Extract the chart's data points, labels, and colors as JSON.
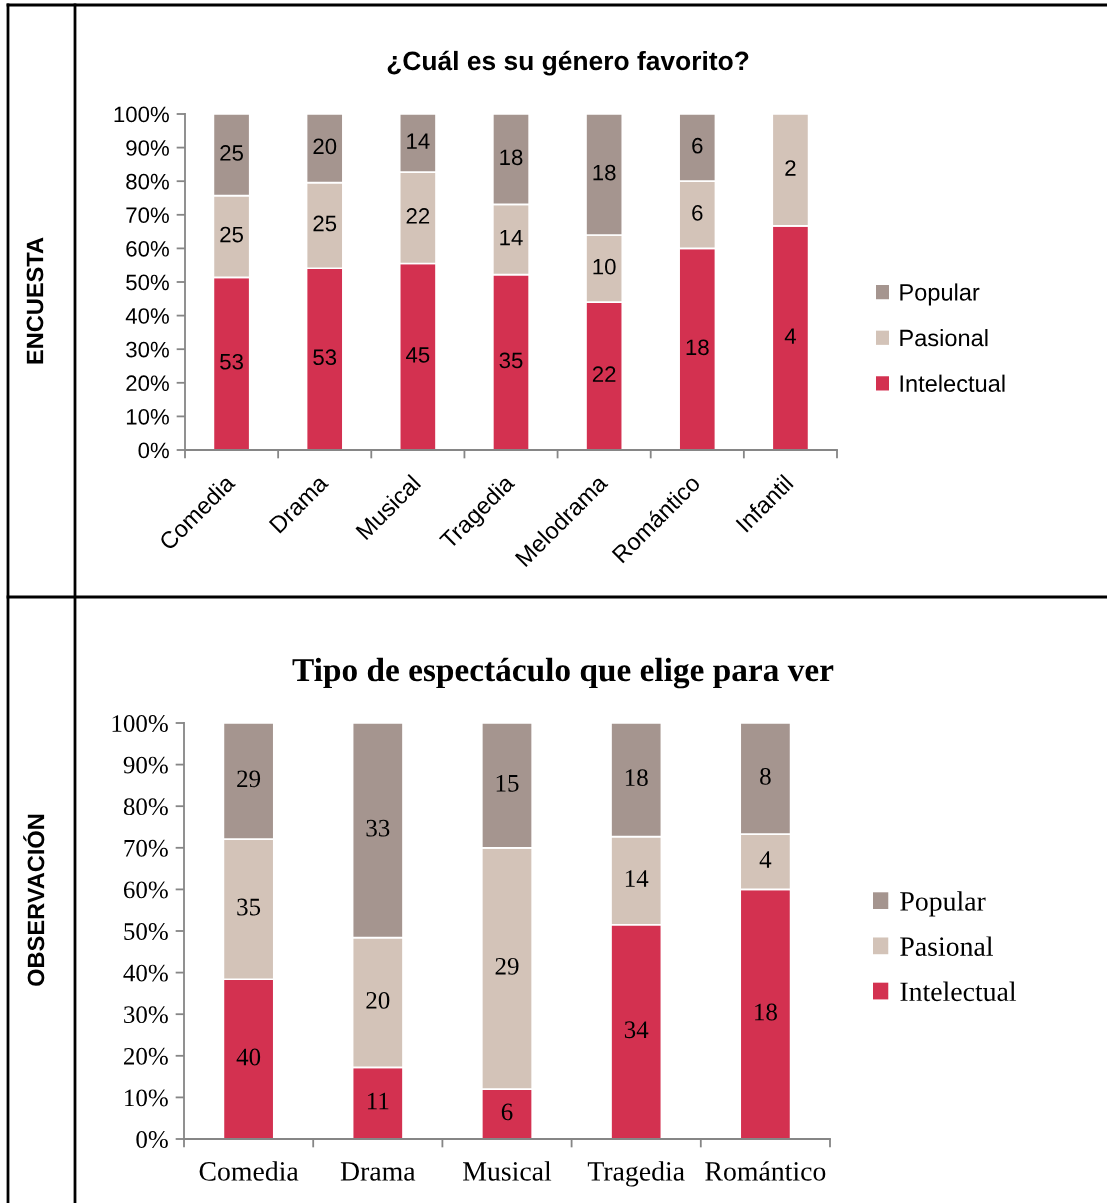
{
  "chart_data": [
    {
      "type": "bar",
      "stacked": true,
      "title": "¿Cuál es su género favorito?",
      "ylabel": "ENCUESTA",
      "categories": [
        "Comedia",
        "Drama",
        "Musical",
        "Tragedia",
        "Melodrama",
        "Romántico",
        "Infantil"
      ],
      "series": [
        {
          "name": "Intelectual",
          "color": "#d33150",
          "values": [
            51.4,
            54.1,
            55.5,
            52.2,
            44,
            60,
            66.7
          ]
        },
        {
          "name": "Pasional",
          "color": "#d3c3b8",
          "values": [
            24.3,
            25.5,
            27.2,
            20.9,
            20,
            20,
            33.3
          ]
        },
        {
          "name": "Popular",
          "color": "#a5958f",
          "values": [
            24.3,
            20.4,
            17.3,
            26.9,
            36,
            20,
            null
          ]
        }
      ],
      "ylim": [
        0,
        100
      ],
      "yticks": [
        {
          "value": 0,
          "label": "0%"
        },
        {
          "value": 10,
          "label": "10%"
        },
        {
          "value": 20,
          "label": "20%"
        },
        {
          "value": 30,
          "label": "30%"
        },
        {
          "value": 40,
          "label": "40%"
        },
        {
          "value": 50,
          "label": "50%"
        },
        {
          "value": 60,
          "label": "60%"
        },
        {
          "value": 70,
          "label": "70%"
        },
        {
          "value": 80,
          "label": "80%"
        },
        {
          "value": 90,
          "label": "90%"
        },
        {
          "value": 100,
          "label": "100%"
        }
      ],
      "annotations": [
        "53",
        "25",
        "25",
        "53",
        "25",
        "20",
        "45",
        "22",
        "14",
        "35",
        "14",
        "18",
        "22",
        "10",
        "18",
        "18",
        "6",
        "6",
        "4",
        "2"
      ],
      "legend": "right"
    },
    {
      "type": "bar",
      "stacked": true,
      "title": "Tipo de espectáculo que elige para ver",
      "ylabel": "OBSERVACIÓN",
      "categories": [
        "Comedia",
        "Drama",
        "Musical",
        "Tragedia",
        "Romántico"
      ],
      "series": [
        {
          "name": "Intelectual",
          "color": "#d33150",
          "values": [
            38.4,
            17.2,
            12,
            51.5,
            60
          ]
        },
        {
          "name": "Pasional",
          "color": "#d3c3b8",
          "values": [
            33.7,
            31.2,
            58,
            21.2,
            13.3
          ]
        },
        {
          "name": "Popular",
          "color": "#a5958f",
          "values": [
            27.9,
            51.6,
            30,
            27.3,
            26.7
          ]
        }
      ],
      "ylim": [
        0,
        100
      ],
      "yticks": [
        {
          "value": 0,
          "label": "0%"
        },
        {
          "value": 10,
          "label": "10%"
        },
        {
          "value": 20,
          "label": "20%"
        },
        {
          "value": 30,
          "label": "30%"
        },
        {
          "value": 40,
          "label": "40%"
        },
        {
          "value": 50,
          "label": "50%"
        },
        {
          "value": 60,
          "label": "60%"
        },
        {
          "value": 70,
          "label": "70%"
        },
        {
          "value": 80,
          "label": "80%"
        },
        {
          "value": 90,
          "label": "90%"
        },
        {
          "value": 100,
          "label": "100%"
        }
      ],
      "annotations": [
        "40",
        "35",
        "29",
        "11",
        "20",
        "33",
        "6",
        "29",
        "15",
        "34",
        "14",
        "18",
        "18",
        "4",
        "8"
      ],
      "legend": "right"
    }
  ]
}
